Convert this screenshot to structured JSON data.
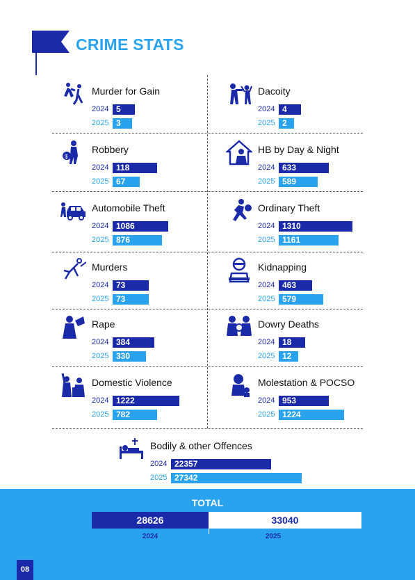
{
  "title": "CRIME STATS",
  "year_a": "2024",
  "year_b": "2025",
  "colors": {
    "dark": "#1a2aa8",
    "light": "#2aa3ee"
  },
  "items": [
    {
      "name": "Murder for Gain",
      "icon": "fighting-figures-icon",
      "v2024": "5",
      "v2025": "3"
    },
    {
      "name": "Dacoity",
      "icon": "gun-robbery-icon",
      "v2024": "4",
      "v2025": "2"
    },
    {
      "name": "Robbery",
      "icon": "robber-with-bag-icon",
      "v2024": "118",
      "v2025": "67"
    },
    {
      "name": "HB by Day & Night",
      "icon": "house-burglar-icon",
      "v2024": "633",
      "v2025": "589"
    },
    {
      "name": "Automobile Theft",
      "icon": "car-thief-icon",
      "v2024": "1086",
      "v2025": "876"
    },
    {
      "name": "Ordinary Theft",
      "icon": "running-thief-icon",
      "v2024": "1310",
      "v2025": "1161"
    },
    {
      "name": "Murders",
      "icon": "stabbing-figures-icon",
      "v2024": "73",
      "v2025": "73"
    },
    {
      "name": "Kidnapping",
      "icon": "kidnapped-person-icon",
      "v2024": "463",
      "v2025": "579"
    },
    {
      "name": "Rape",
      "icon": "victim-hand-icon",
      "v2024": "384",
      "v2025": "330"
    },
    {
      "name": "Dowry Deaths",
      "icon": "dowry-money-icon",
      "v2024": "18",
      "v2025": "12"
    },
    {
      "name": "Domestic Violence",
      "icon": "domestic-violence-icon",
      "v2024": "1222",
      "v2025": "782"
    },
    {
      "name": "Molestation & POCSO",
      "icon": "mother-child-icon",
      "v2024": "953",
      "v2025": "1224"
    },
    {
      "name": "Bodily & other Offences",
      "icon": "hospital-bed-icon",
      "v2024": "22357",
      "v2025": "27342"
    }
  ],
  "total": {
    "label": "TOTAL",
    "v2024": "28626",
    "v2025": "33040"
  },
  "page_number": "08"
}
